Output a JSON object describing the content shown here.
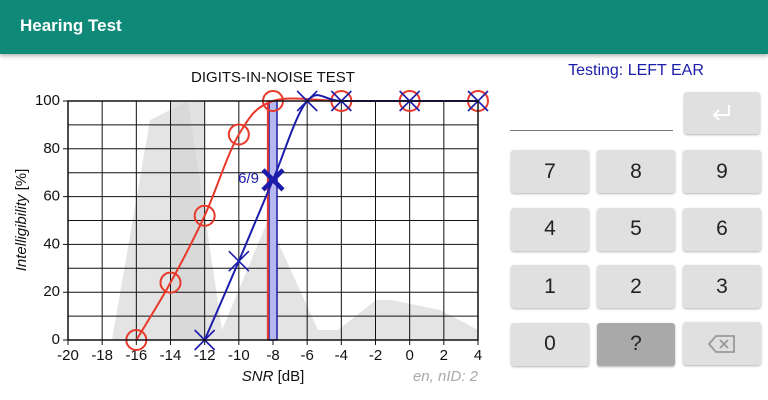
{
  "app_bar": {
    "title": "Hearing Test"
  },
  "chart_data": {
    "type": "line",
    "title": "DIGITS-IN-NOISE TEST",
    "x_label": {
      "name": "SNR",
      "unit": "[dB]"
    },
    "y_label": {
      "name": "Intelligibility",
      "unit": "[%]"
    },
    "xlim": [
      -20,
      4
    ],
    "ylim": [
      0,
      100
    ],
    "xticks": [
      -20,
      -18,
      -16,
      -14,
      -12,
      -10,
      -8,
      -6,
      -4,
      -2,
      0,
      2,
      4
    ],
    "yticks": [
      0,
      20,
      40,
      60,
      80,
      100
    ],
    "y_minor_ticks": [
      10,
      30,
      50,
      70,
      90
    ],
    "grid": true,
    "series": [
      {
        "color": "#e8392b",
        "marker": "circle",
        "x": [
          -16,
          -14,
          -12,
          -10,
          -8,
          -4,
          0,
          4
        ],
        "values": [
          0,
          24,
          52,
          86,
          100,
          100,
          100,
          100
        ],
        "threshold": -8.3
      },
      {
        "color": "#1c1caa",
        "marker": "cross",
        "x": [
          -12,
          -10,
          -8,
          -6,
          -4,
          0,
          4
        ],
        "values": [
          0,
          33,
          67,
          100,
          100,
          100,
          100
        ],
        "highlight_index": 2
      }
    ],
    "annotations": [
      {
        "text": "6/9"
      }
    ],
    "current_snr": -8,
    "note": "en, nID: 2"
  },
  "status": "Testing: LEFT EAR",
  "keypad": {
    "keys": [
      "7",
      "8",
      "9",
      "4",
      "5",
      "6",
      "1",
      "2",
      "3",
      "0",
      "?"
    ],
    "pressed_key_index": 10
  }
}
